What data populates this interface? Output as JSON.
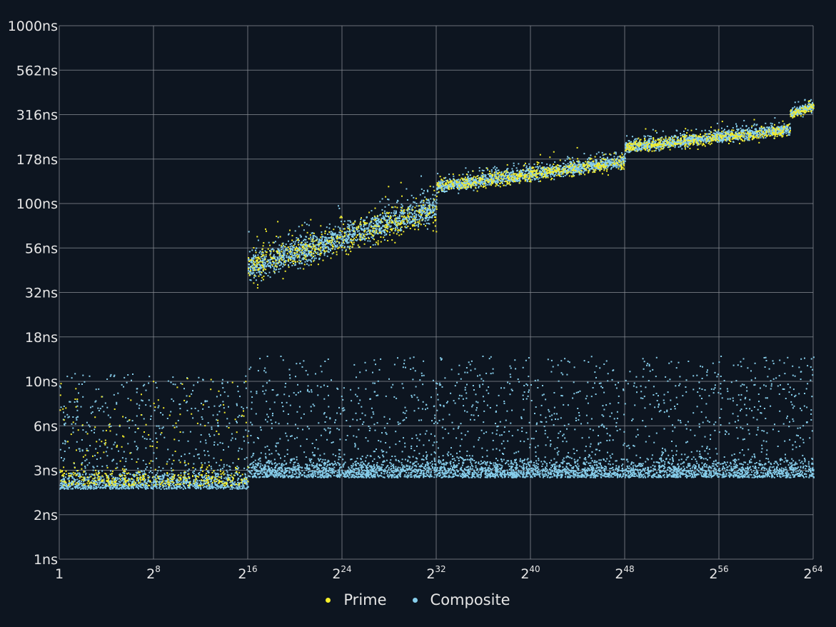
{
  "chart_data": {
    "type": "scatter",
    "title": "",
    "xlabel": "",
    "ylabel": "",
    "x_scale": "log2",
    "y_scale": "log",
    "x_range": [
      1,
      18446744073709551616
    ],
    "y_range": [
      1,
      1000
    ],
    "x_ticks": [
      {
        "base": "1",
        "exp": ""
      },
      {
        "base": "2",
        "exp": "8"
      },
      {
        "base": "2",
        "exp": "16"
      },
      {
        "base": "2",
        "exp": "24"
      },
      {
        "base": "2",
        "exp": "32"
      },
      {
        "base": "2",
        "exp": "40"
      },
      {
        "base": "2",
        "exp": "48"
      },
      {
        "base": "2",
        "exp": "56"
      },
      {
        "base": "2",
        "exp": "64"
      }
    ],
    "y_ticks": [
      "1ns",
      "2ns",
      "3ns",
      "6ns",
      "10ns",
      "18ns",
      "32ns",
      "56ns",
      "100ns",
      "178ns",
      "316ns",
      "562ns",
      "1000ns"
    ],
    "grid": true,
    "legend_position": "bottom-center",
    "series": [
      {
        "name": "Prime",
        "color": "#f5ee2a",
        "bands": [
          {
            "x_exp_from": 0,
            "x_exp_to": 16,
            "y_median_ns": 2.6,
            "y_min_ns": 2.2,
            "y_max_ns": 7.5
          },
          {
            "x_exp_from": 16,
            "x_exp_to": 32,
            "y_from_ns": 44,
            "y_to_ns": 92,
            "spread": 0.18
          },
          {
            "x_exp_from": 32,
            "x_exp_to": 48,
            "y_from_ns": 125,
            "y_to_ns": 172,
            "spread": 0.08
          },
          {
            "x_exp_from": 48,
            "x_exp_to": 62,
            "y_from_ns": 208,
            "y_to_ns": 260,
            "spread": 0.07
          },
          {
            "x_exp_from": 62,
            "x_exp_to": 64,
            "y_from_ns": 320,
            "y_to_ns": 350,
            "spread": 0.05
          }
        ]
      },
      {
        "name": "Composite",
        "color": "#87ceeb",
        "bands": [
          {
            "x_exp_from": 0,
            "x_exp_to": 16,
            "y_median_ns": 2.5,
            "y_min_ns": 2.2,
            "y_max_ns": 8
          },
          {
            "x_exp_from": 16,
            "x_exp_to": 64,
            "y_median_ns": 2.9,
            "y_min_ns": 2.5,
            "y_max_ns": 10
          },
          {
            "x_exp_from": 16,
            "x_exp_to": 32,
            "y_from_ns": 44,
            "y_to_ns": 95,
            "spread": 0.14
          },
          {
            "x_exp_from": 32,
            "x_exp_to": 48,
            "y_from_ns": 125,
            "y_to_ns": 175,
            "spread": 0.07
          },
          {
            "x_exp_from": 48,
            "x_exp_to": 62,
            "y_from_ns": 208,
            "y_to_ns": 265,
            "spread": 0.06
          },
          {
            "x_exp_from": 62,
            "x_exp_to": 64,
            "y_from_ns": 322,
            "y_to_ns": 355,
            "spread": 0.05
          }
        ]
      }
    ]
  },
  "legend": {
    "items": [
      {
        "label": "Prime",
        "color": "#f5ee2a"
      },
      {
        "label": "Composite",
        "color": "#87ceeb"
      }
    ]
  }
}
